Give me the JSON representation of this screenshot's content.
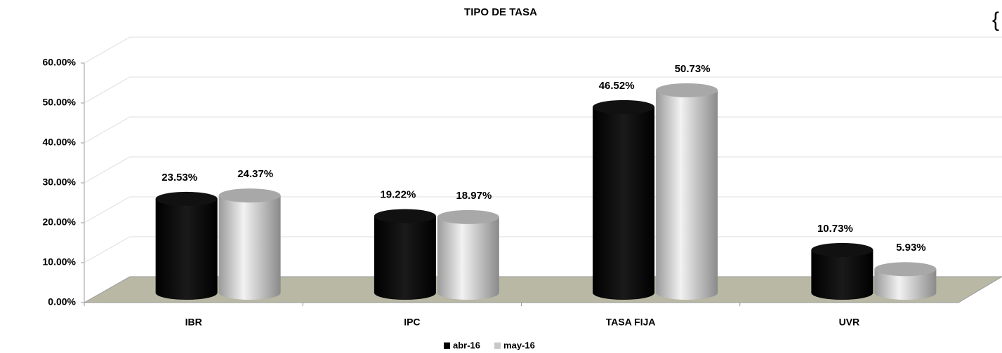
{
  "chart_data": {
    "type": "bar",
    "title": "TIPO DE TASA",
    "annotation": "{",
    "categories": [
      "IBR",
      "IPC",
      "TASA FIJA",
      "UVR"
    ],
    "series": [
      {
        "name": "abr-16",
        "color": "#000000",
        "values": [
          23.53,
          19.22,
          46.52,
          10.73
        ],
        "value_labels": [
          "23.53%",
          "19.22%",
          "46.52%",
          "10.73%"
        ]
      },
      {
        "name": "may-16",
        "color": "#c8c8c8",
        "values": [
          24.37,
          18.97,
          50.73,
          5.93
        ],
        "value_labels": [
          "24.37%",
          "18.97%",
          "50.73%",
          "5.93%"
        ]
      }
    ],
    "ylim": [
      0,
      60
    ],
    "yticks": [
      {
        "value": 0,
        "label": "0.00%"
      },
      {
        "value": 10,
        "label": "10.00%"
      },
      {
        "value": 20,
        "label": "20.00%"
      },
      {
        "value": 30,
        "label": "30.00%"
      },
      {
        "value": 40,
        "label": "40.00%"
      },
      {
        "value": 50,
        "label": "50.00%"
      },
      {
        "value": 60,
        "label": "60.00%"
      }
    ],
    "grid": true,
    "legend": "bottom"
  }
}
